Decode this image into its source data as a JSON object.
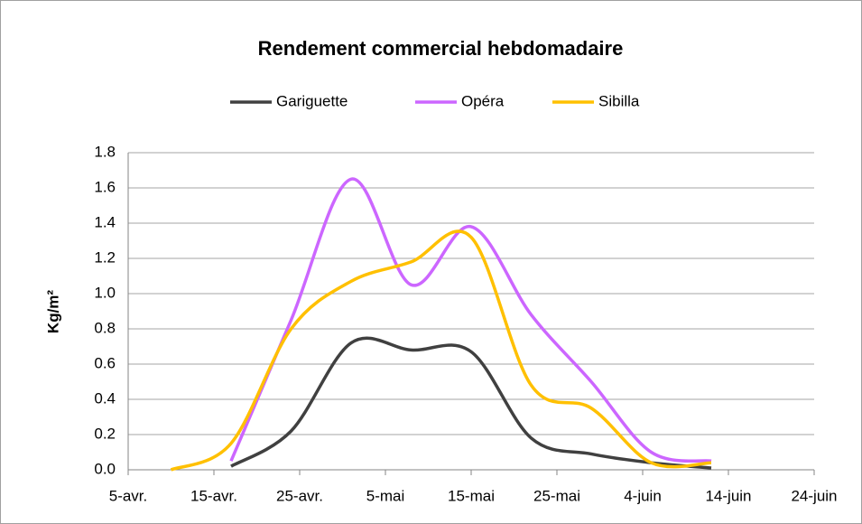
{
  "chart_data": {
    "type": "line",
    "title": "Rendement commercial hebdomadaire",
    "y_label": "Kg/m²",
    "x": [
      100,
      107,
      114,
      121,
      128,
      135,
      142,
      149,
      156,
      163
    ],
    "series": [
      {
        "name": "Gariguette",
        "color": "#404040",
        "values": [
          null,
          0.02,
          0.22,
          0.72,
          0.68,
          0.67,
          0.18,
          0.09,
          0.04,
          0.01
        ]
      },
      {
        "name": "Opéra",
        "color": "#cc66ff",
        "values": [
          null,
          0.05,
          0.85,
          1.65,
          1.05,
          1.38,
          0.88,
          0.5,
          0.1,
          0.05
        ]
      },
      {
        "name": "Sibilla",
        "color": "#ffc000",
        "values": [
          0.0,
          0.15,
          0.8,
          1.07,
          1.18,
          1.32,
          0.48,
          0.35,
          0.04,
          0.04
        ]
      }
    ],
    "xlim": [
      95,
      175
    ],
    "xticks": [
      {
        "value": 95,
        "label": "5-avr."
      },
      {
        "value": 105,
        "label": "15-avr."
      },
      {
        "value": 115,
        "label": "25-avr."
      },
      {
        "value": 125,
        "label": "5-mai"
      },
      {
        "value": 135,
        "label": "15-mai"
      },
      {
        "value": 145,
        "label": "25-mai"
      },
      {
        "value": 155,
        "label": "4-juin"
      },
      {
        "value": 165,
        "label": "14-juin"
      },
      {
        "value": 175,
        "label": "24-juin"
      }
    ],
    "ylim": [
      0,
      1.8
    ],
    "yticks": [
      {
        "value": 0,
        "label": "0.0"
      },
      {
        "value": 0.2,
        "label": "0.2"
      },
      {
        "value": 0.4,
        "label": "0.4"
      },
      {
        "value": 0.6,
        "label": "0.6"
      },
      {
        "value": 0.8,
        "label": "0.8"
      },
      {
        "value": 1,
        "label": "1.0"
      },
      {
        "value": 1.2,
        "label": "1.2"
      },
      {
        "value": 1.4,
        "label": "1.4"
      },
      {
        "value": 1.6,
        "label": "1.6"
      },
      {
        "value": 1.8,
        "label": "1.8"
      }
    ],
    "grid": true,
    "legend": "top",
    "smooth": true
  }
}
